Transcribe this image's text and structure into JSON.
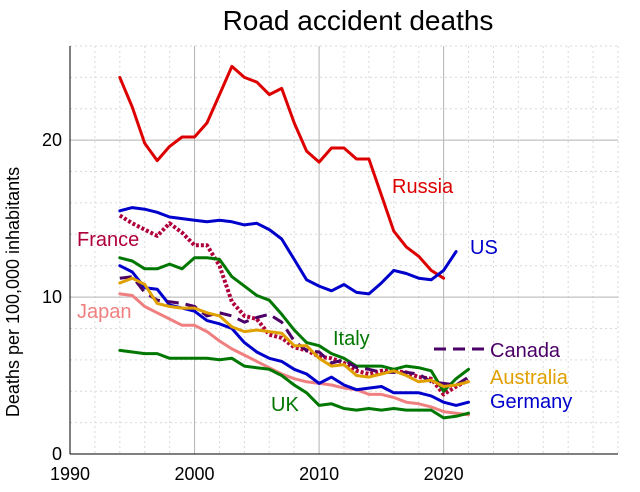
{
  "chart_data": {
    "type": "line",
    "title": "Road accident deaths",
    "xlabel": "",
    "ylabel": "Deaths per 100,000 inhabitants",
    "xlim": [
      1990,
      2034
    ],
    "ylim": [
      0,
      26
    ],
    "x_ticks": [
      1990,
      2000,
      2010,
      2020
    ],
    "y_ticks": [
      0,
      10,
      20
    ],
    "grid": true,
    "legend": "labels placed next to lines",
    "series": [
      {
        "name": "Russia",
        "color": "#dd0000",
        "dashed": false,
        "dotted": false,
        "x": [
          1994,
          1995,
          1996,
          1997,
          1998,
          1999,
          2000,
          2001,
          2002,
          2003,
          2004,
          2005,
          2006,
          2007,
          2008,
          2009,
          2010,
          2011,
          2012,
          2013,
          2014,
          2015,
          2016,
          2017,
          2018,
          2019,
          2020
        ],
        "y": [
          24.0,
          22.1,
          19.8,
          18.7,
          19.6,
          20.2,
          20.2,
          21.1,
          22.9,
          24.7,
          24.0,
          23.7,
          22.9,
          23.3,
          21.1,
          19.3,
          18.6,
          19.5,
          19.5,
          18.8,
          18.8,
          16.5,
          14.2,
          13.2,
          12.6,
          11.7,
          11.2
        ]
      },
      {
        "name": "US",
        "color": "#0000cc",
        "dashed": false,
        "dotted": false,
        "x": [
          1994,
          1995,
          1996,
          1997,
          1998,
          1999,
          2000,
          2001,
          2002,
          2003,
          2004,
          2005,
          2006,
          2007,
          2008,
          2009,
          2010,
          2011,
          2012,
          2013,
          2014,
          2015,
          2016,
          2017,
          2018,
          2019,
          2020,
          2021
        ],
        "y": [
          15.5,
          15.7,
          15.6,
          15.4,
          15.1,
          15.0,
          14.9,
          14.8,
          14.9,
          14.8,
          14.6,
          14.7,
          14.3,
          13.7,
          12.4,
          11.1,
          10.7,
          10.4,
          10.8,
          10.3,
          10.2,
          10.9,
          11.7,
          11.5,
          11.2,
          11.1,
          11.7,
          12.9
        ]
      },
      {
        "name": "France",
        "color": "#b0003a",
        "dashed": false,
        "dotted": true,
        "x": [
          1994,
          1995,
          1996,
          1997,
          1998,
          1999,
          2000,
          2001,
          2002,
          2003,
          2004,
          2005,
          2006,
          2007,
          2008,
          2009,
          2010,
          2011,
          2012,
          2013,
          2014,
          2015,
          2016,
          2017,
          2018,
          2019,
          2020,
          2021,
          2022
        ],
        "y": [
          15.2,
          14.7,
          14.3,
          13.9,
          14.7,
          14.1,
          13.3,
          13.3,
          12.0,
          9.7,
          8.8,
          8.6,
          7.6,
          7.4,
          6.8,
          6.6,
          6.2,
          6.1,
          5.8,
          5.3,
          5.1,
          5.3,
          5.3,
          5.2,
          4.9,
          4.8,
          3.8,
          4.3,
          4.7
        ]
      },
      {
        "name": "Japan",
        "color": "#f08080",
        "dashed": false,
        "dotted": false,
        "x": [
          1994,
          1995,
          1996,
          1997,
          1998,
          1999,
          2000,
          2001,
          2002,
          2003,
          2004,
          2005,
          2006,
          2007,
          2008,
          2009,
          2010,
          2011,
          2012,
          2013,
          2014,
          2015,
          2016,
          2017,
          2018,
          2019,
          2020,
          2021,
          2022
        ],
        "y": [
          10.2,
          10.1,
          9.4,
          9.0,
          8.6,
          8.2,
          8.2,
          7.8,
          7.2,
          6.7,
          6.3,
          5.9,
          5.5,
          5.1,
          4.8,
          4.6,
          4.5,
          4.4,
          4.2,
          4.1,
          3.8,
          3.8,
          3.6,
          3.3,
          3.2,
          3.0,
          2.7,
          2.6,
          2.5
        ]
      },
      {
        "name": "Germany",
        "color": "#0000cc",
        "dashed": false,
        "dotted": false,
        "x": [
          1994,
          1995,
          1996,
          1997,
          1998,
          1999,
          2000,
          2001,
          2002,
          2003,
          2004,
          2005,
          2006,
          2007,
          2008,
          2009,
          2010,
          2011,
          2012,
          2013,
          2014,
          2015,
          2016,
          2017,
          2018,
          2019,
          2020,
          2021,
          2022
        ],
        "y": [
          12.0,
          11.6,
          10.6,
          10.5,
          9.5,
          9.3,
          9.1,
          8.5,
          8.3,
          8.0,
          7.1,
          6.5,
          6.1,
          5.9,
          5.4,
          5.1,
          4.5,
          4.9,
          4.4,
          4.1,
          4.2,
          4.3,
          3.9,
          3.9,
          3.9,
          3.7,
          3.3,
          3.1,
          3.3
        ]
      },
      {
        "name": "UK",
        "color": "#007700",
        "dashed": false,
        "dotted": false,
        "x": [
          1994,
          1995,
          1996,
          1997,
          1998,
          1999,
          2000,
          2001,
          2002,
          2003,
          2004,
          2005,
          2006,
          2007,
          2008,
          2009,
          2010,
          2011,
          2012,
          2013,
          2014,
          2015,
          2016,
          2017,
          2018,
          2019,
          2020,
          2021,
          2022
        ],
        "y": [
          6.6,
          6.5,
          6.4,
          6.4,
          6.1,
          6.1,
          6.1,
          6.1,
          6.0,
          6.1,
          5.6,
          5.5,
          5.4,
          5.0,
          4.4,
          3.9,
          3.1,
          3.2,
          2.9,
          2.8,
          2.9,
          2.8,
          2.9,
          2.8,
          2.8,
          2.8,
          2.3,
          2.4,
          2.6
        ]
      },
      {
        "name": "Italy",
        "color": "#007700",
        "dashed": false,
        "dotted": false,
        "x": [
          1994,
          1995,
          1996,
          1997,
          1998,
          1999,
          2000,
          2001,
          2002,
          2003,
          2004,
          2005,
          2006,
          2007,
          2008,
          2009,
          2010,
          2011,
          2012,
          2013,
          2014,
          2015,
          2016,
          2017,
          2018,
          2019,
          2020,
          2021,
          2022
        ],
        "y": [
          12.5,
          12.3,
          11.8,
          11.8,
          12.1,
          11.8,
          12.5,
          12.5,
          12.4,
          11.3,
          10.7,
          10.1,
          9.8,
          8.9,
          7.9,
          7.1,
          6.9,
          6.4,
          6.1,
          5.6,
          5.6,
          5.6,
          5.4,
          5.6,
          5.5,
          5.3,
          4.0,
          4.8,
          5.4
        ]
      },
      {
        "name": "Canada",
        "color": "#4a0066",
        "dashed": true,
        "dotted": false,
        "x": [
          1994,
          1995,
          1996,
          1997,
          1998,
          1999,
          2000,
          2001,
          2002,
          2003,
          2004,
          2005,
          2006,
          2007,
          2008,
          2009,
          2010,
          2011,
          2012,
          2013,
          2014,
          2015,
          2016,
          2017,
          2018,
          2019,
          2020,
          2021,
          2022
        ],
        "y": [
          11.2,
          11.3,
          10.3,
          9.8,
          9.7,
          9.6,
          9.4,
          8.8,
          9.0,
          8.8,
          8.4,
          8.7,
          8.9,
          8.4,
          7.2,
          6.6,
          6.5,
          5.8,
          6.0,
          5.5,
          5.4,
          5.2,
          5.2,
          5.2,
          5.1,
          4.6,
          4.5,
          4.4,
          4.9
        ]
      },
      {
        "name": "Australia",
        "color": "#e0a000",
        "dashed": false,
        "dotted": false,
        "x": [
          1994,
          1995,
          1996,
          1997,
          1998,
          1999,
          2000,
          2001,
          2002,
          2003,
          2004,
          2005,
          2006,
          2007,
          2008,
          2009,
          2010,
          2011,
          2012,
          2013,
          2014,
          2015,
          2016,
          2017,
          2018,
          2019,
          2020,
          2021,
          2022
        ],
        "y": [
          10.9,
          11.2,
          10.8,
          9.6,
          9.4,
          9.3,
          9.3,
          9.0,
          8.8,
          8.1,
          7.8,
          7.9,
          7.8,
          7.7,
          6.9,
          6.9,
          6.1,
          5.6,
          5.7,
          5.0,
          4.9,
          5.1,
          5.3,
          5.0,
          4.6,
          4.7,
          4.3,
          4.4,
          4.6
        ]
      }
    ],
    "labels": [
      {
        "text": "Russia",
        "color": "#dd0000"
      },
      {
        "text": "US",
        "color": "#0000cc"
      },
      {
        "text": "France",
        "color": "#b0003a"
      },
      {
        "text": "Japan",
        "color": "#f08080"
      },
      {
        "text": "Italy",
        "color": "#007700"
      },
      {
        "text": "Canada",
        "color": "#4a0066"
      },
      {
        "text": "Australia",
        "color": "#e0a000"
      },
      {
        "text": "Germany",
        "color": "#0000cc"
      },
      {
        "text": "UK",
        "color": "#007700"
      }
    ]
  }
}
